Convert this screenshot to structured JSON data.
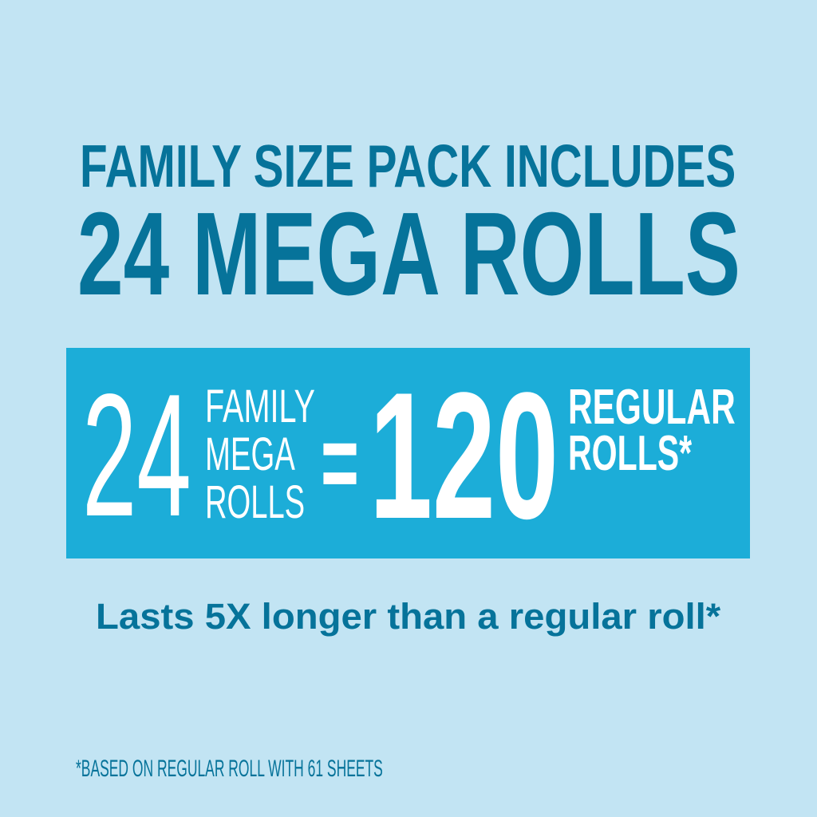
{
  "headline": {
    "line1": "FAMILY SIZE PACK INCLUDES",
    "line2": "24 MEGA ROLLS"
  },
  "equation": {
    "left_number": "24",
    "left_label_lines": [
      "FAMILY",
      "MEGA",
      "ROLLS"
    ],
    "equals": "=",
    "right_number": "120",
    "right_label_lines": [
      "REGULAR",
      "ROLLS*"
    ]
  },
  "tagline": "Lasts 5X longer than a regular roll*",
  "footnote": "*BASED ON REGULAR ROLL WITH 61 SHEETS",
  "colors": {
    "background": "#c2e4f3",
    "text_dark": "#06739a",
    "highlight_box": "#1cadd8",
    "text_light": "#ffffff"
  }
}
